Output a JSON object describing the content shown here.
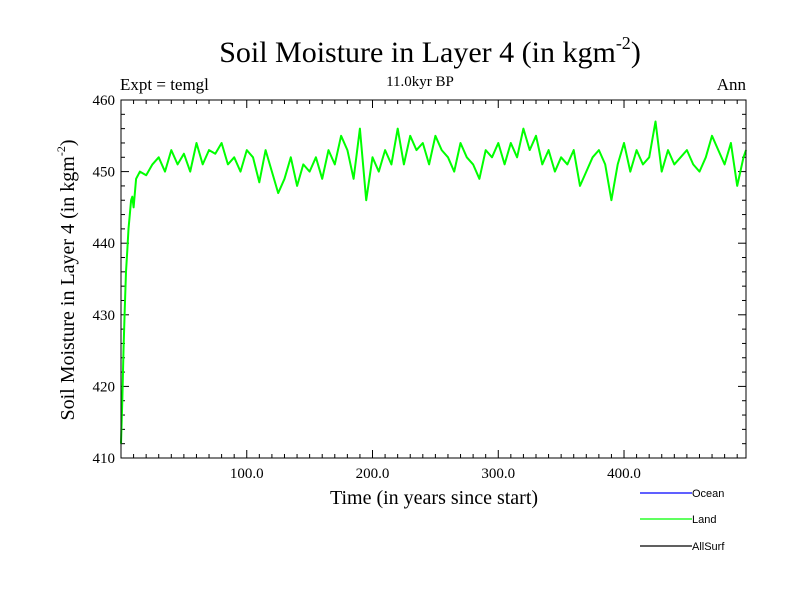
{
  "chart_data": {
    "type": "line",
    "title": "Soil Moisture in Layer 4 (in kgm",
    "title_sup": "-2",
    "title_close": ")",
    "subtitle": "11.0kyr BP",
    "left_label": "Expt = temgl",
    "right_label": "Ann",
    "xlabel": "Time (in years since start)",
    "ylabel": "Soil Moisture in Layer 4 (in kgm",
    "ylabel_sup": "-2",
    "ylabel_close": ")",
    "xlim": [
      0,
      497
    ],
    "ylim": [
      410,
      460
    ],
    "xticks": [
      100,
      200,
      300,
      400
    ],
    "xtick_labels": [
      "100.0",
      "200.0",
      "300.0",
      "400.0"
    ],
    "yticks": [
      410,
      420,
      430,
      440,
      450,
      460
    ],
    "ytick_labels": [
      "410",
      "420",
      "430",
      "440",
      "450",
      "460"
    ],
    "series": [
      {
        "name": "Ocean",
        "color": "#0000ff",
        "values": []
      },
      {
        "name": "Land",
        "color": "#00ff00",
        "x": [
          0,
          1,
          2,
          3,
          4,
          5,
          6,
          7,
          8,
          9,
          10,
          12,
          15,
          20,
          25,
          30,
          35,
          40,
          45,
          50,
          55,
          60,
          65,
          70,
          75,
          80,
          85,
          90,
          95,
          100,
          105,
          110,
          115,
          120,
          125,
          130,
          135,
          140,
          145,
          150,
          155,
          160,
          165,
          170,
          175,
          180,
          185,
          190,
          195,
          200,
          205,
          210,
          215,
          220,
          225,
          230,
          235,
          240,
          245,
          250,
          255,
          260,
          265,
          270,
          275,
          280,
          285,
          290,
          295,
          300,
          305,
          310,
          315,
          320,
          325,
          330,
          335,
          340,
          345,
          350,
          355,
          360,
          365,
          370,
          375,
          380,
          385,
          390,
          395,
          400,
          405,
          410,
          415,
          420,
          425,
          430,
          435,
          440,
          445,
          450,
          455,
          460,
          465,
          470,
          475,
          480,
          485,
          490,
          495,
          497
        ],
        "values": [
          412,
          418,
          425,
          431,
          436,
          439,
          442,
          444,
          446,
          446.5,
          445,
          449,
          450,
          449.5,
          451,
          452,
          450,
          453,
          451,
          452.5,
          450,
          454,
          451,
          453,
          452.5,
          454,
          451,
          452,
          450,
          453,
          452,
          448.5,
          453,
          450,
          447,
          449,
          452,
          448,
          451,
          450,
          452,
          449,
          453,
          451,
          455,
          453,
          449,
          456,
          446,
          452,
          450,
          453,
          451,
          456,
          451,
          455,
          453,
          454,
          451,
          455,
          453,
          452,
          450,
          454,
          452,
          451,
          449,
          453,
          452,
          454,
          451,
          454,
          452,
          456,
          453,
          455,
          451,
          453,
          450,
          452,
          451,
          453,
          448,
          450,
          452,
          453,
          451,
          446,
          451,
          454,
          450,
          453,
          451,
          452,
          457,
          450,
          453,
          451,
          452,
          453,
          451,
          450,
          452,
          455,
          453,
          451,
          454,
          448,
          452,
          453
        ]
      },
      {
        "name": "AllSurf",
        "color": "#000000",
        "values": []
      }
    ],
    "legend_position": "bottom-right"
  }
}
